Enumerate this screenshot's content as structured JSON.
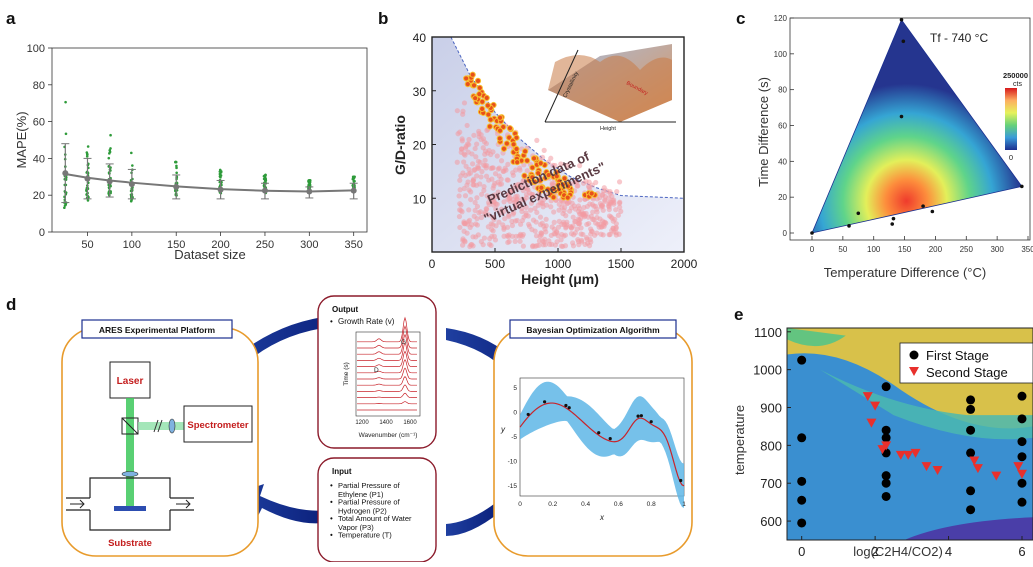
{
  "panels": {
    "a": "a",
    "b": "b",
    "c": "c",
    "d": "d",
    "e": "e"
  },
  "chart_data": [
    {
      "panel": "a",
      "type": "scatter",
      "xlabel": "Dataset size",
      "ylabel": "MAPE(%)",
      "xlim": [
        10,
        365
      ],
      "ylim": [
        0,
        100
      ],
      "xticks": [
        "50",
        "100",
        "150",
        "200",
        "250",
        "300",
        "350"
      ],
      "yticks": [
        "0",
        "20",
        "40",
        "60",
        "80",
        "100"
      ],
      "grid": false,
      "x": [
        25,
        50,
        75,
        100,
        150,
        200,
        250,
        300,
        350
      ],
      "mean": [
        32,
        29,
        27.5,
        26,
        24.5,
        23,
        22.5,
        22,
        22.5
      ],
      "err_low": [
        16,
        18,
        19,
        18,
        18,
        18,
        18,
        18.5,
        18
      ],
      "err_high": [
        48,
        40,
        37,
        34,
        31,
        28,
        26.5,
        24.5,
        26.5
      ],
      "scatter_min": [
        8,
        12,
        15,
        12,
        15,
        16,
        16,
        18,
        17
      ],
      "scatter_max": [
        78,
        64,
        53,
        43,
        38,
        34,
        31,
        28,
        30
      ],
      "fit_curve": [
        [
          25,
          31.5
        ],
        [
          50,
          29.5
        ],
        [
          75,
          28
        ],
        [
          100,
          26.8
        ],
        [
          150,
          24.8
        ],
        [
          200,
          23.3
        ],
        [
          250,
          22.4
        ],
        [
          300,
          22
        ],
        [
          350,
          22.6
        ]
      ]
    },
    {
      "panel": "b",
      "type": "scatter",
      "xlabel": "Height (μm)",
      "ylabel": "G/D-ratio",
      "xlim": [
        0,
        2000
      ],
      "ylim": [
        0,
        40
      ],
      "xticks": [
        "0",
        "500",
        "1000",
        "1500",
        "2000"
      ],
      "yticks": [
        "10",
        "20",
        "30",
        "40"
      ],
      "annotation": "Prediction data of \"virtual experiments\"",
      "inset_labels": [
        "Crystallinity",
        "Boundary",
        "Height"
      ],
      "boundary_curve": [
        [
          150,
          40
        ],
        [
          300,
          33
        ],
        [
          500,
          26
        ],
        [
          700,
          21
        ],
        [
          900,
          17
        ],
        [
          1100,
          14
        ],
        [
          1300,
          12
        ],
        [
          1500,
          10.5
        ],
        [
          2000,
          10
        ]
      ],
      "frontier_points_range": {
        "x": [
          250,
          1400
        ],
        "y": [
          10,
          34
        ]
      }
    },
    {
      "panel": "c",
      "type": "heatmap",
      "title": "Tf - 740 °C",
      "xlabel": "Temperature Difference (°C)",
      "ylabel": "Time Difference (s)",
      "xlim": [
        0,
        350
      ],
      "ylim": [
        0,
        120
      ],
      "xticks": [
        "0",
        "50",
        "100",
        "150",
        "200",
        "250",
        "300",
        "350"
      ],
      "yticks": [
        "0",
        "20",
        "40",
        "60",
        "80",
        "100",
        "120"
      ],
      "colorbar_max": "250000",
      "colorbar_unit": "cts",
      "colorbar_min": "0",
      "points": [
        [
          0,
          0
        ],
        [
          60,
          4
        ],
        [
          75,
          11
        ],
        [
          130,
          5
        ],
        [
          132,
          8
        ],
        [
          145,
          119
        ],
        [
          148,
          107
        ],
        [
          145,
          65
        ],
        [
          180,
          15
        ],
        [
          195,
          12
        ],
        [
          340,
          26
        ]
      ]
    },
    {
      "panel": "e",
      "type": "scatter",
      "xlabel": "log(C2H4/CO2)",
      "ylabel": "temperature",
      "xlim": [
        -0.4,
        6.3
      ],
      "ylim": [
        550,
        1110
      ],
      "xticks": [
        "0",
        "2",
        "4",
        "6"
      ],
      "yticks": [
        "600",
        "700",
        "800",
        "900",
        "1000",
        "1100"
      ],
      "legend_position": "top-right",
      "series": [
        {
          "name": "First Stage",
          "points": [
            [
              0,
              1025
            ],
            [
              0,
              820
            ],
            [
              0,
              705
            ],
            [
              0,
              655
            ],
            [
              0,
              595
            ],
            [
              2.3,
              955
            ],
            [
              2.3,
              840
            ],
            [
              2.3,
              820
            ],
            [
              2.3,
              780
            ],
            [
              2.3,
              720
            ],
            [
              2.3,
              700
            ],
            [
              2.3,
              665
            ],
            [
              4.6,
              920
            ],
            [
              4.6,
              895
            ],
            [
              4.6,
              840
            ],
            [
              4.6,
              780
            ],
            [
              4.6,
              680
            ],
            [
              4.6,
              630
            ],
            [
              6,
              930
            ],
            [
              6,
              870
            ],
            [
              6,
              810
            ],
            [
              6,
              770
            ],
            [
              6,
              700
            ],
            [
              6,
              650
            ]
          ]
        },
        {
          "name": "Second Stage",
          "points": [
            [
              1.8,
              930
            ],
            [
              2.0,
              905
            ],
            [
              1.9,
              860
            ],
            [
              2.2,
              790
            ],
            [
              2.3,
              800
            ],
            [
              2.7,
              775
            ],
            [
              2.9,
              775
            ],
            [
              3.1,
              780
            ],
            [
              3.4,
              745
            ],
            [
              3.7,
              735
            ],
            [
              4.7,
              760
            ],
            [
              4.8,
              740
            ],
            [
              5.3,
              720
            ],
            [
              5.9,
              745
            ],
            [
              6.0,
              725
            ]
          ]
        }
      ]
    }
  ],
  "panel_d": {
    "ares_title": "ARES Experimental Platform",
    "laser": "Laser",
    "spectrometer": "Spectrometer",
    "substrate": "Substrate",
    "output_title": "Output",
    "output_item": "Growth Rate (v)",
    "raman_ylabel": "Time (s)",
    "raman_xlabel": "Wavenumber (cm⁻¹)",
    "raman_ticks": [
      "1200",
      "1400",
      "1600"
    ],
    "raman_peaks": [
      "D",
      "G"
    ],
    "bo_title": "Bayesian Optimization Algorithm",
    "bo_xlabel": "x",
    "bo_ylabel": "y",
    "bo_xticks": [
      "0",
      "0.2",
      "0.4",
      "0.6",
      "0.8",
      "1"
    ],
    "bo_yticks": [
      "5",
      "0",
      "-5",
      "-10",
      "-15"
    ],
    "input_title": "Input",
    "input_items": [
      "Partial Pressure of Ethylene (P1)",
      "Partial Pressure of Hydrogen (P2)",
      "Total Amount of Water Vapor (P3)",
      "Temperature (T)"
    ]
  }
}
